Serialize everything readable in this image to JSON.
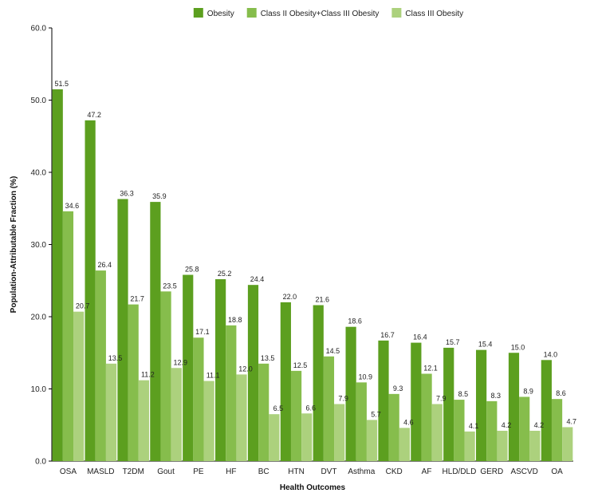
{
  "chart_data": {
    "type": "bar",
    "title": "",
    "xlabel": "Health Outcomes",
    "ylabel": "Population-Attributable Fraction (%)",
    "ylim": [
      0,
      60
    ],
    "yticks": [
      "0.0",
      "10.0",
      "20.0",
      "30.0",
      "40.0",
      "50.0",
      "60.0"
    ],
    "legend_position": "top-center",
    "categories": [
      "OSA",
      "MASLD",
      "T2DM",
      "Gout",
      "PE",
      "HF",
      "BC",
      "HTN",
      "DVT",
      "Asthma",
      "CKD",
      "AF",
      "HLD/DLD",
      "GERD",
      "ASCVD",
      "OA"
    ],
    "series": [
      {
        "name": "Obesity",
        "color": "#5c9f1f",
        "values": [
          51.5,
          47.2,
          36.3,
          35.9,
          25.8,
          25.2,
          24.4,
          22.0,
          21.6,
          18.6,
          16.7,
          16.4,
          15.7,
          15.4,
          15.0,
          14.0
        ],
        "labels": [
          "51.5",
          "47.2",
          "36.3",
          "35.9",
          "25.8",
          "25.2",
          "24.4",
          "22.0",
          "21.6",
          "18.6",
          "16.7",
          "16.4",
          "15.7",
          "15.4",
          "15.0",
          "14.0"
        ]
      },
      {
        "name": "Class II Obesity+Class III Obesity",
        "color": "#86bd4c",
        "values": [
          34.6,
          26.4,
          21.7,
          23.5,
          17.1,
          18.8,
          13.5,
          12.5,
          14.5,
          10.9,
          9.3,
          12.1,
          8.5,
          8.3,
          8.9,
          8.6
        ],
        "labels": [
          "34.6",
          "26.4",
          "21.7",
          "23.5",
          "17.1",
          "18.8",
          "13.5",
          "12.5",
          "14.5",
          "10.9",
          "9.3",
          "12.1",
          "8.5",
          "8.3",
          "8.9",
          "8.6"
        ]
      },
      {
        "name": "Class III Obesity",
        "color": "#acd17d",
        "values": [
          20.7,
          13.5,
          11.2,
          12.9,
          11.1,
          12.0,
          6.5,
          6.6,
          7.9,
          5.7,
          4.6,
          7.9,
          4.1,
          4.2,
          4.2,
          4.7
        ],
        "labels": [
          "20.7",
          "13.5",
          "11.2",
          "12.9",
          "11.1",
          "12.0",
          "6.5",
          "6.6",
          "7.9",
          "5.7",
          "4.6",
          "7.9",
          "4.1",
          "4.2",
          "4.2",
          "4.7"
        ]
      }
    ]
  }
}
